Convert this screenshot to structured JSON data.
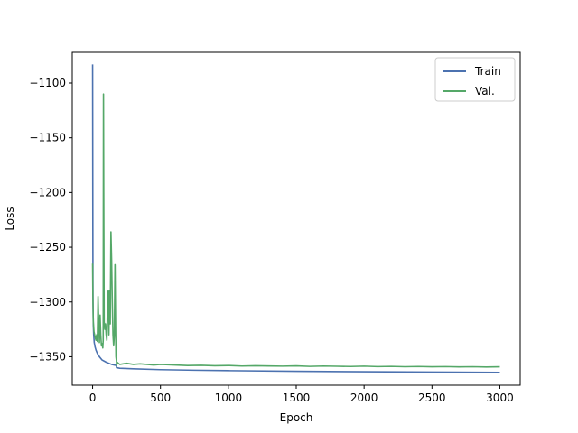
{
  "chart_data": {
    "type": "line",
    "title": "",
    "xlabel": "Epoch",
    "ylabel": "Loss",
    "xlim": [
      -150,
      3150
    ],
    "ylim": [
      -1376,
      -1072
    ],
    "xticks": [
      0,
      500,
      1000,
      1500,
      2000,
      2500,
      3000
    ],
    "yticks": [
      -1100,
      -1150,
      -1200,
      -1250,
      -1300,
      -1350
    ],
    "grid": false,
    "legend_position": "top-right",
    "series": [
      {
        "name": "Train",
        "color": "#4c72b0",
        "x": [
          0,
          1,
          2,
          3,
          5,
          8,
          12,
          18,
          25,
          35,
          50,
          70,
          100,
          140,
          175,
          176,
          200,
          300,
          500,
          750,
          1000,
          1500,
          2000,
          2500,
          3000
        ],
        "y": [
          -1083,
          -1170,
          -1250,
          -1300,
          -1320,
          -1330,
          -1337,
          -1341,
          -1344,
          -1347,
          -1350,
          -1353,
          -1355,
          -1357,
          -1358,
          -1360,
          -1360.5,
          -1361,
          -1361.8,
          -1362.3,
          -1362.7,
          -1363.3,
          -1363.7,
          -1364,
          -1364.3
        ]
      },
      {
        "name": "Val.",
        "color": "#55a868",
        "x": [
          0,
          2,
          5,
          10,
          15,
          20,
          25,
          30,
          35,
          40,
          45,
          50,
          55,
          60,
          65,
          70,
          75,
          78,
          80,
          82,
          85,
          90,
          95,
          100,
          105,
          110,
          115,
          120,
          125,
          130,
          135,
          140,
          145,
          150,
          155,
          160,
          165,
          170,
          172,
          175,
          177,
          180,
          190,
          200,
          250,
          300,
          350,
          400,
          450,
          500,
          600,
          700,
          800,
          900,
          1000,
          1100,
          1200,
          1300,
          1400,
          1500,
          1600,
          1700,
          1800,
          1900,
          2000,
          2100,
          2200,
          2300,
          2400,
          2500,
          2600,
          2700,
          2800,
          2900,
          3000
        ],
        "y": [
          -1265,
          -1295,
          -1318,
          -1327,
          -1330,
          -1333,
          -1335,
          -1330,
          -1336,
          -1295,
          -1320,
          -1337,
          -1312,
          -1330,
          -1340,
          -1338,
          -1342,
          -1335,
          -1110,
          -1200,
          -1318,
          -1325,
          -1320,
          -1330,
          -1335,
          -1300,
          -1290,
          -1330,
          -1290,
          -1320,
          -1236,
          -1262,
          -1300,
          -1330,
          -1340,
          -1330,
          -1266,
          -1330,
          -1350,
          -1353,
          -1358,
          -1355,
          -1356,
          -1357,
          -1356,
          -1357,
          -1356.5,
          -1357,
          -1357.5,
          -1357,
          -1357.5,
          -1358,
          -1357.8,
          -1358.2,
          -1358,
          -1358.5,
          -1358.2,
          -1358.4,
          -1358.6,
          -1358.3,
          -1358.8,
          -1358.5,
          -1358.7,
          -1358.9,
          -1358.6,
          -1359,
          -1358.8,
          -1359.1,
          -1358.9,
          -1359.2,
          -1359,
          -1359.3,
          -1359.1,
          -1359.4,
          -1359.2
        ]
      }
    ]
  }
}
